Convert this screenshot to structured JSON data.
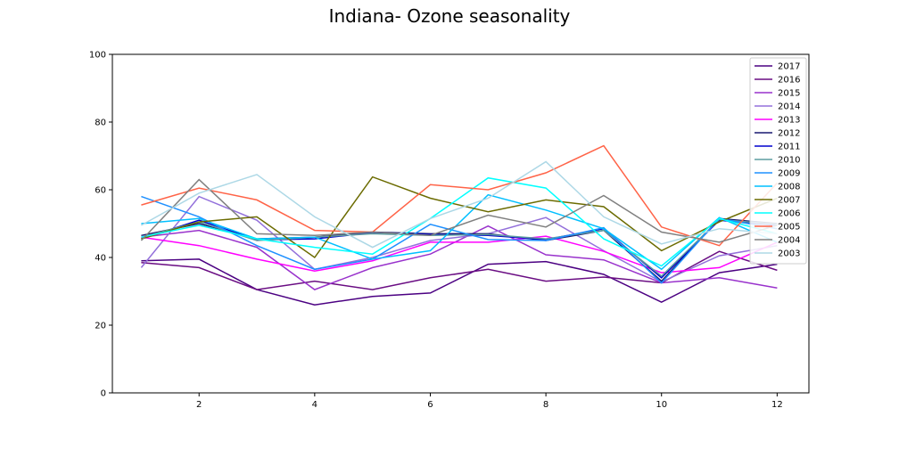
{
  "chart_data": {
    "type": "line",
    "title": "Indiana- Ozone seasonality",
    "xlabel": "",
    "ylabel": "",
    "xlim": [
      0.5,
      12.55
    ],
    "ylim": [
      0,
      100
    ],
    "xticks": [
      2,
      4,
      6,
      8,
      10,
      12
    ],
    "yticks": [
      0,
      20,
      40,
      60,
      80,
      100
    ],
    "grid": false,
    "legend_position": "top-right",
    "x": [
      1,
      2,
      3,
      4,
      5,
      6,
      7,
      8,
      9,
      10,
      11,
      12
    ],
    "series": [
      {
        "name": "2017",
        "color": "#4b0082",
        "values": [
          39.0,
          39.5,
          30.5,
          26.0,
          28.5,
          29.5,
          38.0,
          38.8,
          35.0,
          26.8,
          35.5,
          38.0
        ]
      },
      {
        "name": "2016",
        "color": "#6a0d83",
        "values": [
          38.5,
          37.0,
          30.5,
          33.0,
          30.5,
          34.0,
          36.5,
          33.0,
          34.2,
          32.5,
          41.8,
          36.2
        ]
      },
      {
        "name": "2015",
        "color": "#9932cc",
        "values": [
          46.0,
          48.0,
          43.0,
          30.5,
          37.0,
          41.0,
          49.3,
          40.8,
          39.3,
          32.5,
          34.0,
          31.0
        ]
      },
      {
        "name": "2014",
        "color": "#9370db",
        "values": [
          37.0,
          58.0,
          51.0,
          36.5,
          40.0,
          45.0,
          47.0,
          51.8,
          42.0,
          32.8,
          40.5,
          43.5
        ]
      },
      {
        "name": "2013",
        "color": "#ff00ff",
        "values": [
          46.0,
          43.5,
          39.5,
          36.0,
          39.0,
          44.5,
          44.5,
          46.3,
          41.8,
          35.5,
          37.0,
          44.5
        ]
      },
      {
        "name": "2012",
        "color": "#191970",
        "values": [
          46.5,
          50.0,
          45.5,
          46.0,
          47.5,
          47.0,
          47.0,
          45.0,
          48.0,
          33.0,
          51.5,
          50.0
        ]
      },
      {
        "name": "2011",
        "color": "#0000cd",
        "values": [
          45.5,
          51.0,
          45.2,
          45.5,
          47.3,
          46.8,
          46.5,
          45.3,
          48.5,
          34.0,
          51.0,
          49.5
        ]
      },
      {
        "name": "2010",
        "color": "#5f9ea0",
        "values": [
          46.0,
          50.5,
          45.0,
          46.0,
          47.0,
          46.5,
          46.8,
          45.5,
          48.0,
          34.5,
          51.2,
          49.8
        ]
      },
      {
        "name": "2009",
        "color": "#1e90ff",
        "values": [
          58.0,
          52.0,
          43.5,
          36.5,
          39.5,
          49.8,
          45.3,
          45.0,
          48.8,
          32.5,
          51.5,
          48.5
        ]
      },
      {
        "name": "2008",
        "color": "#00bfff",
        "values": [
          50.0,
          51.5,
          45.5,
          46.0,
          39.5,
          42.0,
          58.5,
          54.0,
          48.5,
          36.5,
          51.8,
          44.5
        ]
      },
      {
        "name": "2007",
        "color": "#6b6b00",
        "values": [
          45.5,
          50.5,
          52.0,
          40.0,
          63.8,
          57.5,
          53.5,
          57.0,
          55.0,
          42.0,
          50.5,
          57.5
        ]
      },
      {
        "name": "2006",
        "color": "#00ffff",
        "values": [
          46.0,
          49.5,
          45.5,
          43.0,
          41.0,
          51.5,
          63.5,
          60.5,
          45.5,
          37.5,
          51.5,
          47.0
        ]
      },
      {
        "name": "2005",
        "color": "#ff6347",
        "values": [
          55.5,
          60.5,
          57.0,
          48.0,
          47.5,
          61.5,
          60.0,
          65.0,
          73.0,
          49.0,
          43.5,
          62.0
        ]
      },
      {
        "name": "2004",
        "color": "#808080",
        "values": [
          45.0,
          63.0,
          47.0,
          46.5,
          47.5,
          46.5,
          52.5,
          49.0,
          58.3,
          47.5,
          44.5,
          49.5
        ]
      },
      {
        "name": "2003",
        "color": "#add8e6",
        "values": [
          49.5,
          59.0,
          64.5,
          52.0,
          43.0,
          51.5,
          57.5,
          68.3,
          52.0,
          44.0,
          48.5,
          47.0
        ]
      }
    ]
  }
}
